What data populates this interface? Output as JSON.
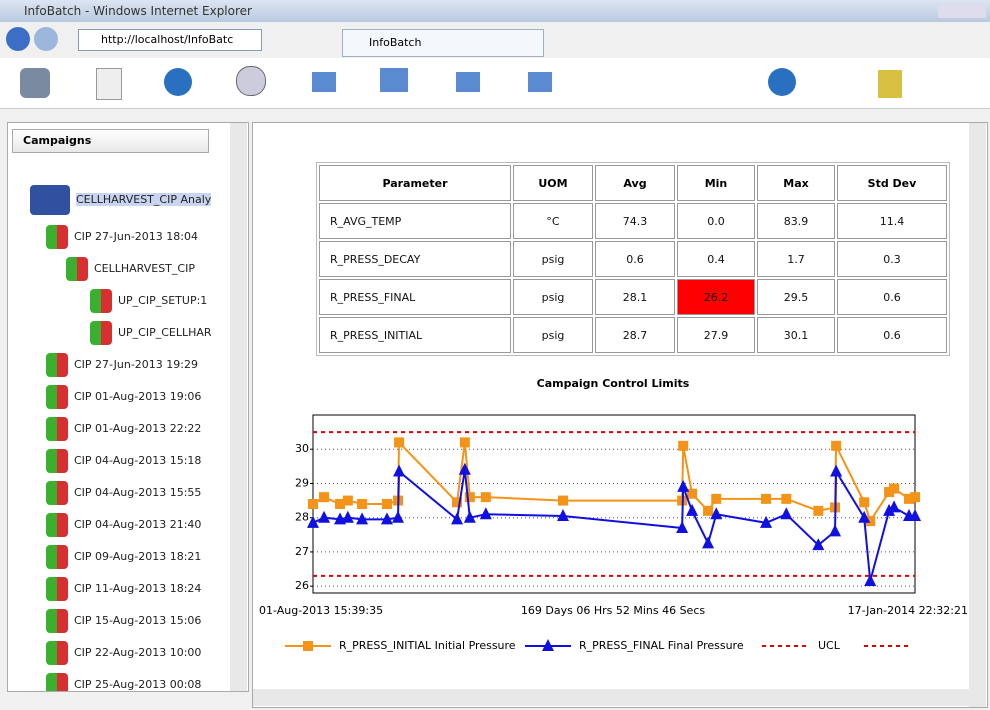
{
  "window": {
    "title": "InfoBatch - Windows Internet Explorer",
    "url": "http://localhost/InfoBatc",
    "tab": "InfoBatch"
  },
  "sidebar": {
    "dropdown": "Campaigns",
    "tree": [
      {
        "label": "CELLHARVEST_CIP Analy",
        "level": 0
      },
      {
        "label": "CIP 27-Jun-2013 18:04",
        "level": 1
      },
      {
        "label": "CELLHARVEST_CIP",
        "level": 2
      },
      {
        "label": "UP_CIP_SETUP:1",
        "level": 3
      },
      {
        "label": "UP_CIP_CELLHAR",
        "level": 3
      },
      {
        "label": "CIP 27-Jun-2013 19:29",
        "level": 1
      },
      {
        "label": "CIP 01-Aug-2013 19:06",
        "level": 1
      },
      {
        "label": "CIP 01-Aug-2013 22:22",
        "level": 1
      },
      {
        "label": "CIP 04-Aug-2013 15:18",
        "level": 1
      },
      {
        "label": "CIP 04-Aug-2013 15:55",
        "level": 1
      },
      {
        "label": "CIP 04-Aug-2013 21:40",
        "level": 1
      },
      {
        "label": "CIP 09-Aug-2013 18:21",
        "level": 1
      },
      {
        "label": "CIP 11-Aug-2013 18:24",
        "level": 1
      },
      {
        "label": "CIP 15-Aug-2013 15:06",
        "level": 1
      },
      {
        "label": "CIP 22-Aug-2013 10:00",
        "level": 1
      },
      {
        "label": "CIP 25-Aug-2013 00:08",
        "level": 1
      }
    ]
  },
  "table": {
    "headers": [
      "Parameter",
      "UOM",
      "Avg",
      "Min",
      "Max",
      "Std Dev"
    ],
    "rows": [
      [
        "R_AVG_TEMP",
        "°C",
        "74.3",
        "0.0",
        "83.9",
        "11.4"
      ],
      [
        "R_PRESS_DECAY",
        "psig",
        "0.6",
        "0.4",
        "1.7",
        "0.3"
      ],
      [
        "R_PRESS_FINAL",
        "psig",
        "28.1",
        "26.2",
        "29.5",
        "0.6"
      ],
      [
        "R_PRESS_INITIAL",
        "psig",
        "28.7",
        "27.9",
        "30.1",
        "0.6"
      ]
    ],
    "highlight": {
      "row": 2,
      "col": 3,
      "color": "#ff0000"
    }
  },
  "chart": {
    "type": "line",
    "title": "Campaign Control Limits",
    "x_start_label": "01-Aug-2013 15:39:35",
    "x_span_label": "169 Days 06 Hrs 52 Mins 46 Secs",
    "x_end_label": "17-Jan-2014 22:32:21",
    "xlim": [
      0,
      169.29
    ],
    "ylim": [
      25.8,
      31.0
    ],
    "yticks": [
      26,
      27,
      28,
      29,
      30
    ],
    "grid": true,
    "x": [
      0,
      3.1,
      7.6,
      9.8,
      13.8,
      20.8,
      23.9,
      24.2,
      40.5,
      42.7,
      44.1,
      48.6,
      70.3,
      103.8,
      104.1,
      106.6,
      111.1,
      113.4,
      127.4,
      133.1,
      142.1,
      146.8,
      147.1,
      155.0,
      156.7,
      162.0,
      163.4,
      167.6,
      169.3
    ],
    "series": [
      {
        "name": "R_PRESS_INITIAL Initial Pressure",
        "color": "#f39419",
        "marker": "square",
        "values": [
          28.4,
          28.6,
          28.4,
          28.5,
          28.4,
          28.4,
          28.5,
          30.2,
          28.45,
          30.2,
          28.6,
          28.6,
          28.5,
          28.5,
          30.1,
          28.7,
          28.2,
          28.55,
          28.55,
          28.55,
          28.2,
          28.3,
          30.1,
          28.45,
          27.9,
          28.75,
          28.85,
          28.55,
          28.6
        ]
      },
      {
        "name": "R_PRESS_FINAL Final Pressure",
        "color": "#1010e0",
        "marker": "triangle",
        "values": [
          27.85,
          28.0,
          27.95,
          28.0,
          27.95,
          27.95,
          28.0,
          29.35,
          27.95,
          29.4,
          28.0,
          28.1,
          28.05,
          27.7,
          28.9,
          28.2,
          27.25,
          28.1,
          27.85,
          28.1,
          27.2,
          27.6,
          29.35,
          28.0,
          26.15,
          28.2,
          28.3,
          28.05,
          28.05
        ]
      }
    ],
    "limits": [
      {
        "name": "UCL",
        "value": 30.5,
        "color": "#e00000"
      },
      {
        "value": 26.3,
        "color": "#e00000"
      }
    ]
  }
}
